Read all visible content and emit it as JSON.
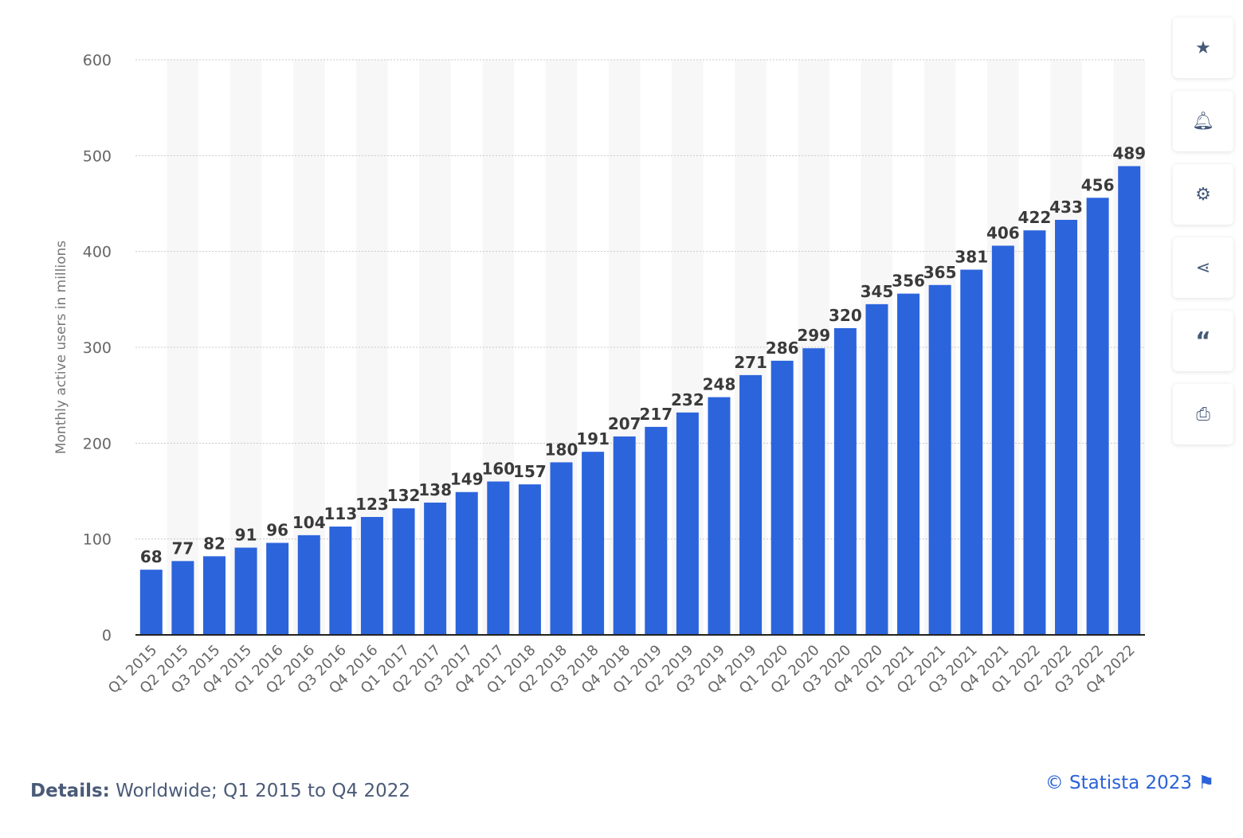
{
  "chart_data": {
    "type": "bar",
    "ylabel": "Monthly active users in millions",
    "ylim": [
      0,
      600
    ],
    "yticks": [
      0,
      100,
      200,
      300,
      400,
      500,
      600
    ],
    "grid": true,
    "bar_color": "#2c64dc",
    "categories": [
      "Q1 2015",
      "Q2 2015",
      "Q3 2015",
      "Q4 2015",
      "Q1 2016",
      "Q2 2016",
      "Q3 2016",
      "Q4 2016",
      "Q1 2017",
      "Q2 2017",
      "Q3 2017",
      "Q4 2017",
      "Q1 2018",
      "Q2 2018",
      "Q3 2018",
      "Q4 2018",
      "Q1 2019",
      "Q2 2019",
      "Q3 2019",
      "Q4 2019",
      "Q1 2020",
      "Q2 2020",
      "Q3 2020",
      "Q4 2020",
      "Q1 2021",
      "Q2 2021",
      "Q3 2021",
      "Q4 2021",
      "Q1 2022",
      "Q2 2022",
      "Q3 2022",
      "Q4 2022"
    ],
    "values": [
      68,
      77,
      82,
      91,
      96,
      104,
      113,
      123,
      132,
      138,
      149,
      160,
      157,
      180,
      191,
      207,
      217,
      232,
      248,
      271,
      286,
      299,
      320,
      345,
      356,
      365,
      381,
      406,
      422,
      433,
      456,
      489
    ]
  },
  "footer": {
    "details_label": "Details:",
    "details_text": " Worldwide; Q1 2015 to Q4 2022",
    "copyright": "© Statista 2023"
  },
  "sidebar": {
    "icons": [
      "star-icon",
      "bell-icon",
      "gear-icon",
      "share-icon",
      "quote-icon",
      "print-icon"
    ]
  }
}
